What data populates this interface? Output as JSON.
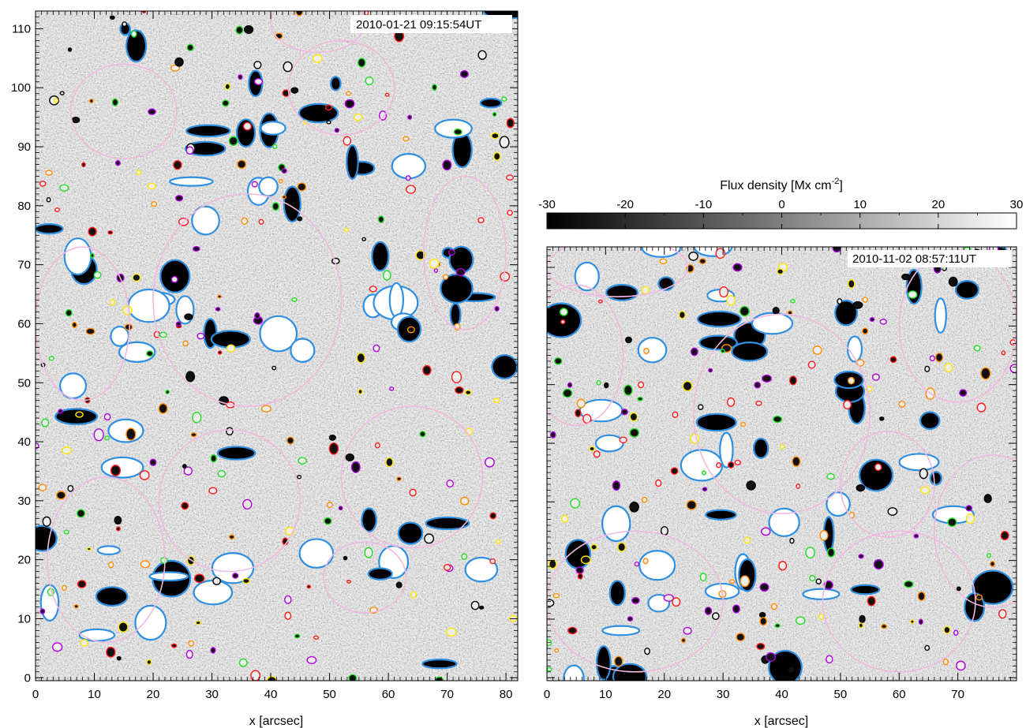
{
  "chart_data": [
    {
      "type": "heatmap",
      "title": "",
      "timestamp": "2010-01-21 09:15:54UT",
      "xlabel": "x [arcsec]",
      "ylabel": "",
      "xlim": [
        0,
        82
      ],
      "ylim": [
        -0.5,
        113
      ],
      "xticks": [
        0,
        10,
        20,
        30,
        40,
        50,
        60,
        70,
        80
      ],
      "yticks": [
        0,
        10,
        20,
        30,
        40,
        50,
        60,
        70,
        80,
        90,
        100,
        110
      ],
      "value_range": [
        -30,
        30
      ],
      "supergranule_cells": [
        {
          "cx": 15,
          "cy": 96,
          "rx": 9,
          "ry": 8
        },
        {
          "cx": 52,
          "cy": 100,
          "rx": 9,
          "ry": 8
        },
        {
          "cx": 36,
          "cy": 64,
          "rx": 16,
          "ry": 18
        },
        {
          "cx": 8,
          "cy": 60,
          "rx": 8,
          "ry": 13
        },
        {
          "cx": 12,
          "cy": 20,
          "rx": 10,
          "ry": 14
        },
        {
          "cx": 33,
          "cy": 30,
          "rx": 12,
          "ry": 12
        },
        {
          "cx": 64,
          "cy": 34,
          "rx": 12,
          "ry": 12
        },
        {
          "cx": 56,
          "cy": 17,
          "rx": 7,
          "ry": 6
        },
        {
          "cx": 73,
          "cy": 72,
          "rx": 7,
          "ry": 13
        },
        {
          "cx": 48,
          "cy": 111,
          "rx": 8,
          "ry": 5
        }
      ]
    },
    {
      "type": "heatmap",
      "title": "",
      "timestamp": "2010-11-02 08:57:11UT",
      "xlabel": "x [arcsec]",
      "ylabel": "",
      "xlim": [
        0,
        80
      ],
      "ylim": [
        -0.5,
        73.5
      ],
      "xticks": [
        0,
        10,
        20,
        30,
        40,
        50,
        60,
        70
      ],
      "yticks": [],
      "value_range": [
        -30,
        30
      ],
      "supergranule_cells": [
        {
          "cx": 40,
          "cy": 45,
          "rx": 15,
          "ry": 17
        },
        {
          "cx": 15,
          "cy": 13,
          "rx": 15,
          "ry": 12
        },
        {
          "cx": 60,
          "cy": 13,
          "rx": 13,
          "ry": 12
        },
        {
          "cx": 70,
          "cy": 60,
          "rx": 10,
          "ry": 13
        },
        {
          "cx": 58,
          "cy": 33,
          "rx": 8,
          "ry": 9
        },
        {
          "cx": 5,
          "cy": 55,
          "rx": 8,
          "ry": 12
        },
        {
          "cx": 12,
          "cy": 70,
          "rx": 12,
          "ry": 5
        },
        {
          "cx": 76,
          "cy": 25,
          "rx": 10,
          "ry": 13
        }
      ]
    }
  ],
  "colorbar": {
    "title_main": "Flux density [Mx cm",
    "title_sup": "-2",
    "title_end": "]",
    "ticks": [
      -30,
      -20,
      -10,
      0,
      10,
      20,
      30
    ],
    "tick_labels": [
      "-30",
      "-20",
      "-10",
      "0",
      "10",
      "20",
      "30"
    ],
    "range": [
      -30,
      30
    ],
    "colors": [
      "#000000",
      "#ffffff"
    ]
  },
  "contour_colors": {
    "network": "#2f8fe0",
    "supergranule": "#f0b8e0",
    "features": [
      "#ffe600",
      "#ff1a1a",
      "#ff8c00",
      "#b000e0",
      "#22dd22",
      "#000000"
    ]
  }
}
